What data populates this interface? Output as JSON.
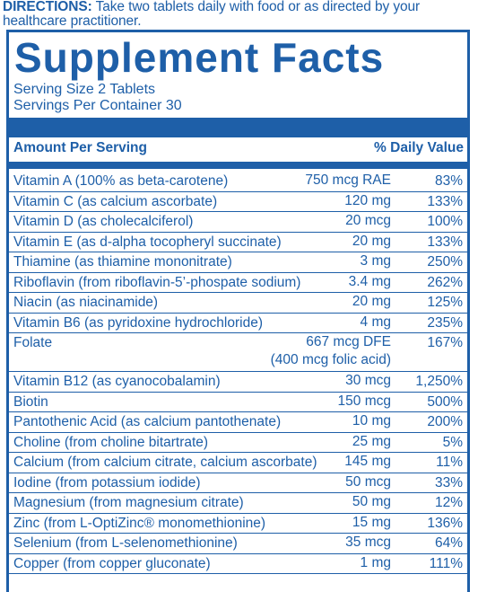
{
  "directions": {
    "label": "DIRECTIONS:",
    "text": " Take two tablets daily with food or as directed by your healthcare practitioner."
  },
  "title": "Supplement Facts",
  "serving_size": "Serving Size 2 Tablets",
  "servings_per_container": "Servings Per Container 30",
  "header": {
    "amount": "Amount Per Serving",
    "dv": "% Daily Value"
  },
  "rows": [
    {
      "name": "Vitamin A (100% as beta-carotene)",
      "amount": "750 mcg RAE",
      "dv": "83%"
    },
    {
      "name": "Vitamin C (as calcium ascorbate)",
      "amount": "120 mg",
      "dv": "133%"
    },
    {
      "name": "Vitamin D (as cholecalciferol)",
      "amount": "20 mcg",
      "dv": "100%"
    },
    {
      "name": "Vitamin E (as d-alpha tocopheryl succinate)",
      "amount": "20 mg",
      "dv": "133%"
    },
    {
      "name": "Thiamine (as thiamine mononitrate)",
      "amount": "3 mg",
      "dv": "250%"
    },
    {
      "name": "Riboflavin (from riboflavin-5’-phospate sodium)",
      "amount": "3.4 mg",
      "dv": "262%"
    },
    {
      "name": "Niacin (as niacinamide)",
      "amount": "20 mg",
      "dv": "125%"
    },
    {
      "name": "Vitamin B6 (as pyridoxine hydrochloride)",
      "amount": "4 mg",
      "dv": "235%"
    },
    {
      "name": "Folate",
      "amount": "667 mcg DFE",
      "amount2": "(400 mcg folic acid)",
      "dv": "167%"
    },
    {
      "name": "Vitamin B12 (as cyanocobalamin)",
      "amount": "30 mcg",
      "dv": "1,250%"
    },
    {
      "name": "Biotin",
      "amount": "150 mcg",
      "dv": "500%"
    },
    {
      "name": "Pantothenic Acid (as calcium pantothenate)",
      "amount": "10 mg",
      "dv": "200%"
    },
    {
      "name": "Choline (from choline bitartrate)",
      "amount": "25 mg",
      "dv": "5%"
    },
    {
      "name": "Calcium (from calcium citrate, calcium ascorbate)",
      "amount": "145 mg",
      "dv": "11%"
    },
    {
      "name": "Iodine (from potassium iodide)",
      "amount": "50 mcg",
      "dv": "33%"
    },
    {
      "name": "Magnesium (from magnesium citrate)",
      "amount": "50 mg",
      "dv": "12%"
    },
    {
      "name": "Zinc (from L-OptiZinc® monomethionine)",
      "amount": "15 mg",
      "dv": "136%"
    },
    {
      "name": "Selenium (from L-selenomethionine)",
      "amount": "35 mcg",
      "dv": "64%"
    },
    {
      "name": "Copper (from copper gluconate)",
      "amount": "1 mg",
      "dv": "111%"
    }
  ]
}
